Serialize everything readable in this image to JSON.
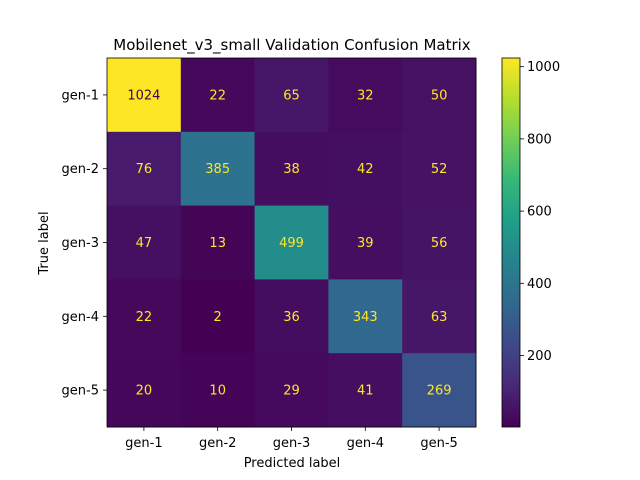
{
  "chart_data": {
    "type": "heatmap",
    "title": "Mobilenet_v3_small Validation Confusion Matrix",
    "xlabel": "Predicted label",
    "ylabel": "True label",
    "x_categories": [
      "gen-1",
      "gen-2",
      "gen-3",
      "gen-4",
      "gen-5"
    ],
    "y_categories": [
      "gen-1",
      "gen-2",
      "gen-3",
      "gen-4",
      "gen-5"
    ],
    "values": [
      [
        1024,
        22,
        65,
        32,
        50
      ],
      [
        76,
        385,
        38,
        42,
        52
      ],
      [
        47,
        13,
        499,
        39,
        56
      ],
      [
        22,
        2,
        36,
        343,
        63
      ],
      [
        20,
        10,
        29,
        41,
        269
      ]
    ],
    "colormap": "viridis",
    "colorbar": {
      "range": [
        2,
        1024
      ],
      "ticks": [
        200,
        400,
        600,
        800,
        1000
      ]
    },
    "colors": {
      "text_on_dark": "#fde725",
      "text_on_light": "#440154"
    }
  }
}
